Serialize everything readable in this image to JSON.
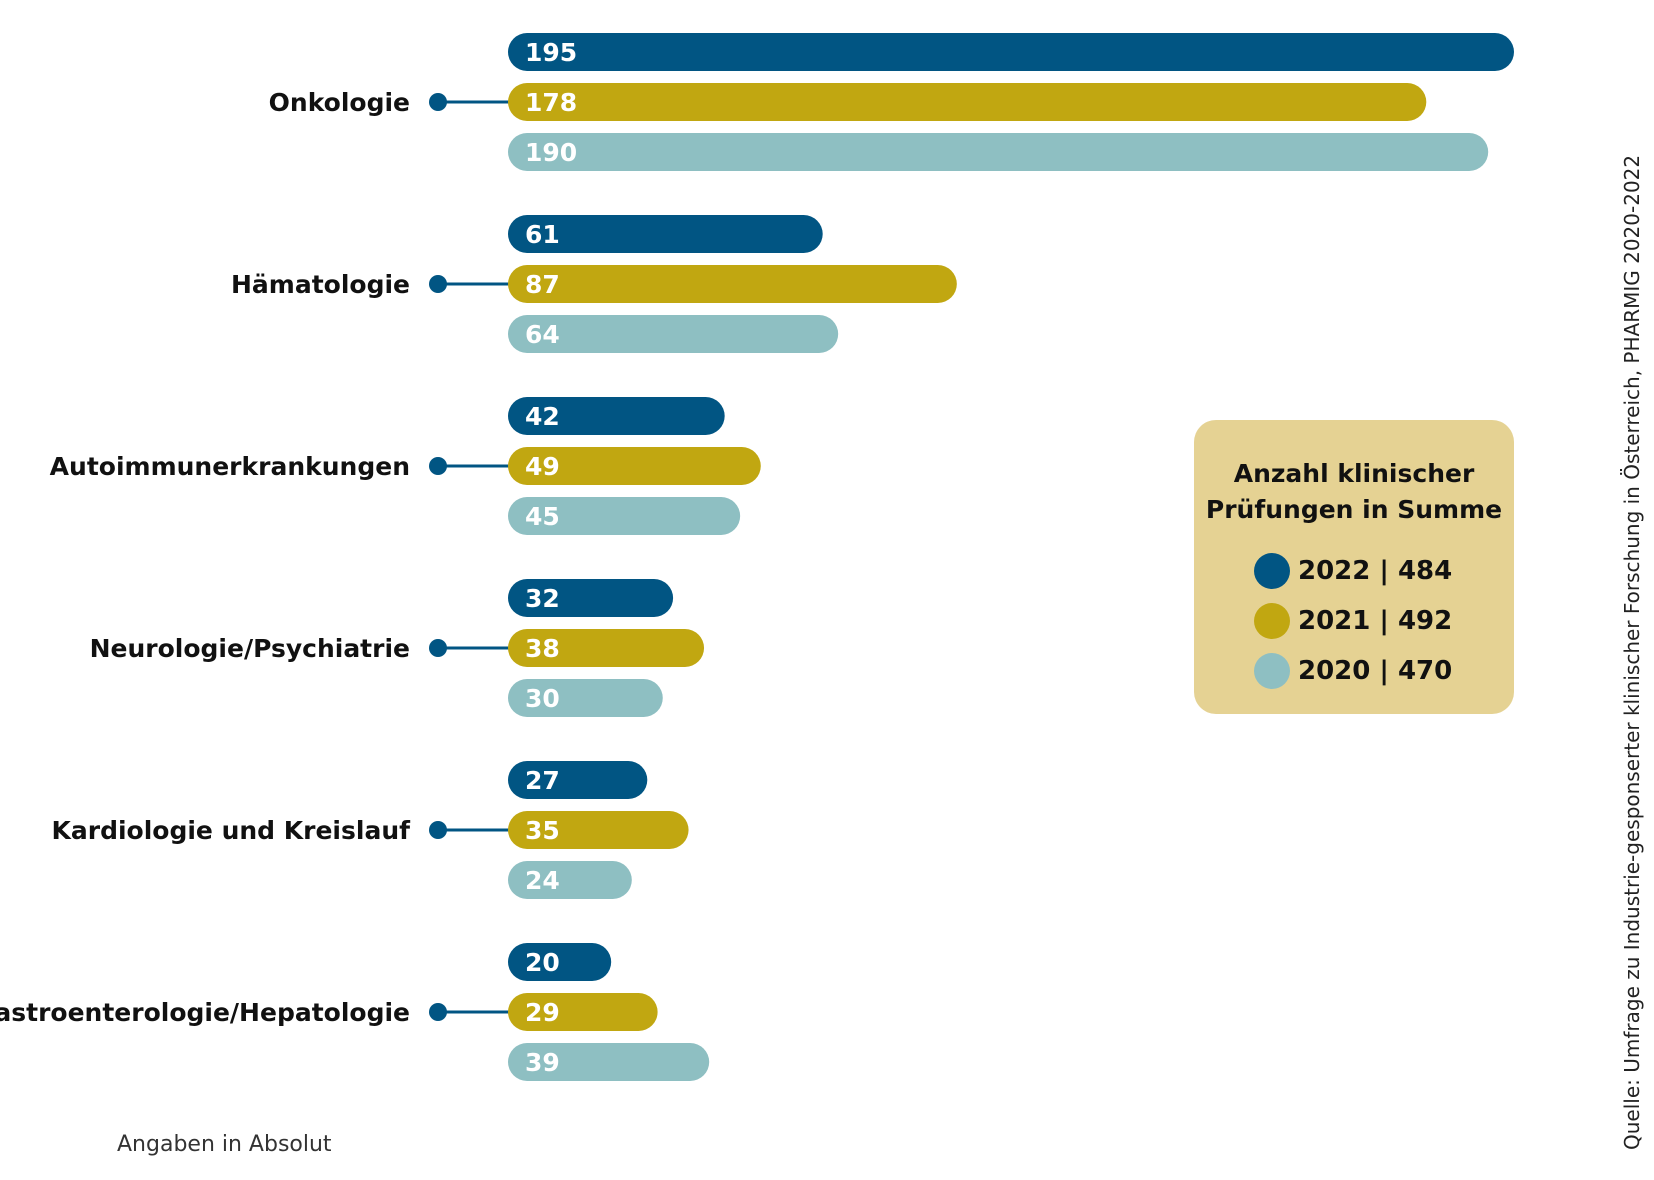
{
  "chart_data": {
    "type": "bar",
    "orientation": "horizontal",
    "categories": [
      "Onkologie",
      "Hämatologie",
      "Autoimmunerkrankungen",
      "Neurologie/Psychiatrie",
      "Kardiologie und Kreislauf",
      "Gastroenterologie/Hepatologie"
    ],
    "series": [
      {
        "year": "2022",
        "color": "#015583",
        "values": [
          195,
          61,
          42,
          32,
          27,
          20
        ]
      },
      {
        "year": "2021",
        "color": "#C1A711",
        "values": [
          178,
          87,
          49,
          38,
          35,
          29
        ]
      },
      {
        "year": "2020",
        "color": "#8EBFC2",
        "values": [
          190,
          64,
          45,
          30,
          24,
          39
        ]
      }
    ],
    "xlim": [
      0,
      195
    ],
    "grid": false
  },
  "legend": {
    "title_line1": "Anzahl klinischer",
    "title_line2": "Prüfungen in Summe",
    "background": "#E5D293",
    "items": [
      {
        "label": "2022 | 484",
        "color": "#015583"
      },
      {
        "label": "2021 | 492",
        "color": "#C1A711"
      },
      {
        "label": "2020 | 470",
        "color": "#8EBFC2"
      }
    ]
  },
  "note": "Angaben in Absolut",
  "source": "Quelle: Umfrage zu Industrie-gesponserter klinischer Forschung in Österreich, PHARMIG 2020-2022",
  "colors": {
    "connector": "#015583",
    "label_text": "#111111",
    "bar_text": "#ffffff"
  }
}
